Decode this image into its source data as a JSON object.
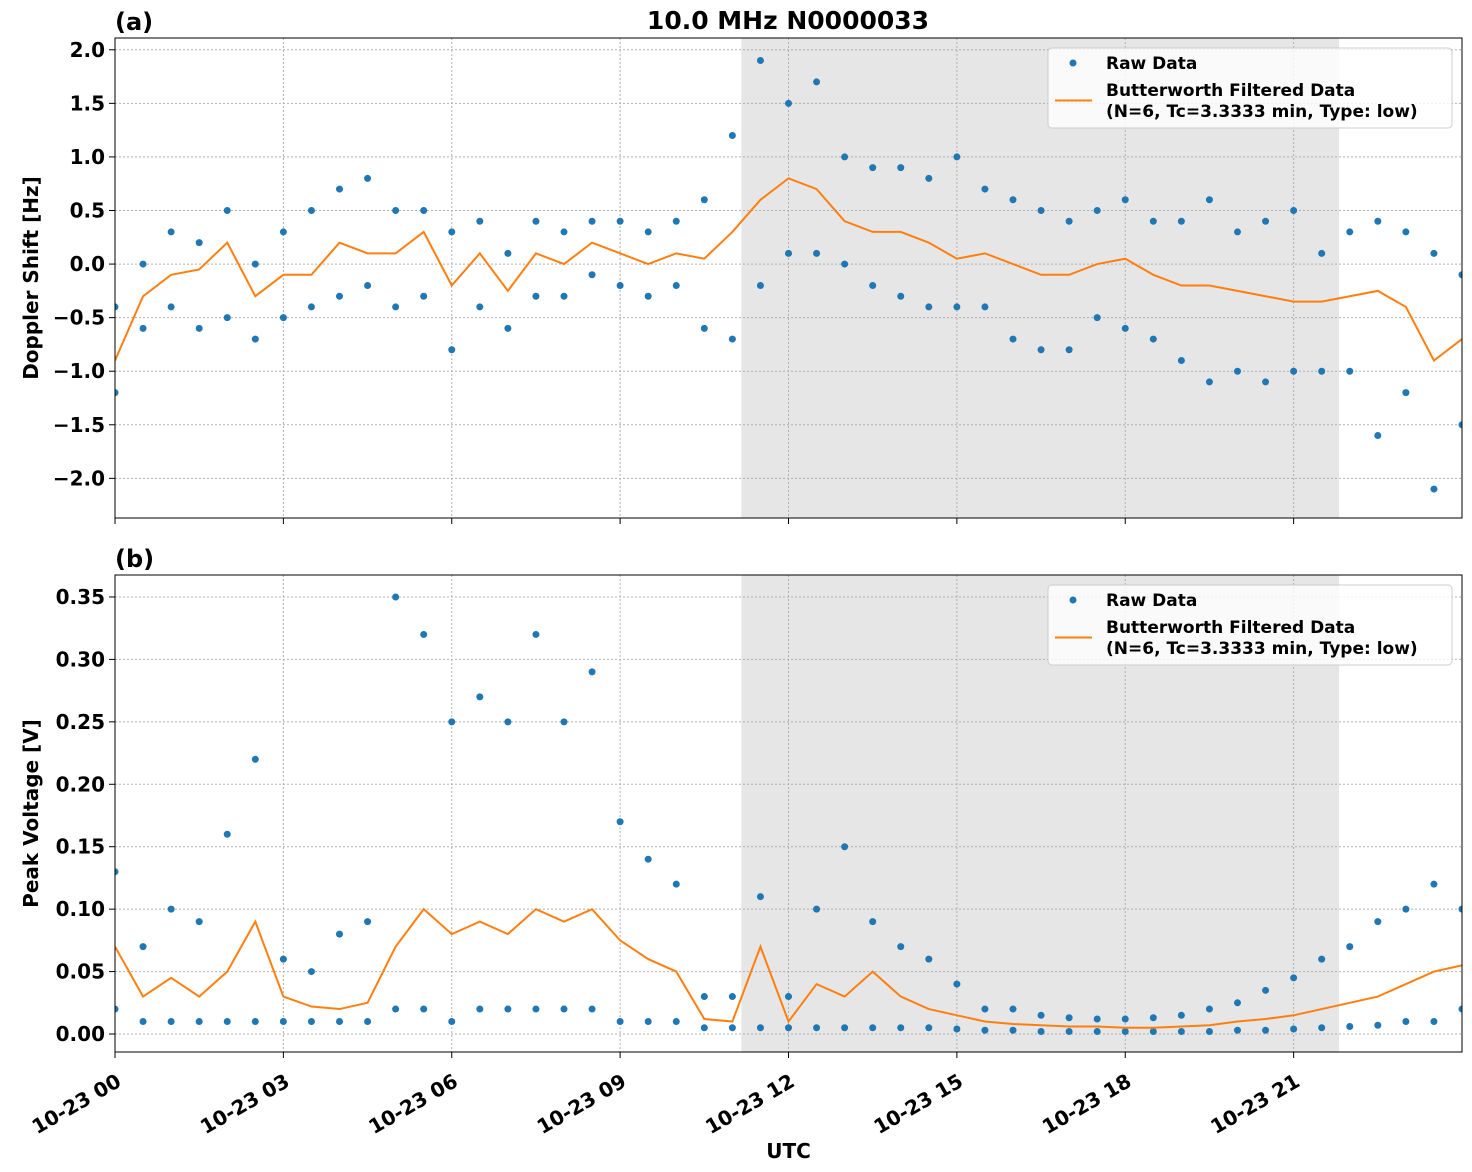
{
  "chart_data": [
    {
      "type": "scatter",
      "panel_label": "(a)",
      "title": "10.0 MHz N0000033",
      "ylabel": "Doppler Shift [Hz]",
      "xlim": [
        0,
        24
      ],
      "xticks": [
        0,
        3,
        6,
        9,
        12,
        15,
        18,
        21
      ],
      "ylim": [
        -2.37,
        2.11
      ],
      "yticks": [
        {
          "value": -2.0,
          "label": "−2.0"
        },
        {
          "value": -1.5,
          "label": "−1.5"
        },
        {
          "value": -1.0,
          "label": "−1.0"
        },
        {
          "value": -0.5,
          "label": "−0.5"
        },
        {
          "value": 0.0,
          "label": "0.0"
        },
        0.5,
        {
          "value": 1.0,
          "label": "1.0"
        },
        1.5,
        {
          "value": 2.0,
          "label": "2.0"
        }
      ],
      "grid": true,
      "legend": "upper right",
      "shaded_span": [
        11.16,
        21.81
      ],
      "shade_color": "#e6e6e6",
      "series": [
        {
          "name": "Raw Data",
          "style": "points",
          "color": "#1f77b4",
          "x": [
            0,
            0,
            0.5,
            0.5,
            1,
            1,
            1.5,
            1.5,
            2,
            2,
            2.5,
            2.5,
            3,
            3,
            3.5,
            3.5,
            4,
            4,
            4.5,
            4.5,
            5,
            5,
            5.5,
            5.5,
            6,
            6,
            6.5,
            6.5,
            7,
            7,
            7.5,
            7.5,
            8,
            8,
            8.5,
            8.5,
            9,
            9,
            9.5,
            9.5,
            10,
            10,
            10.5,
            10.5,
            11,
            11,
            11.5,
            11.5,
            12,
            12,
            12.5,
            12.5,
            13,
            13,
            13.5,
            13.5,
            14,
            14,
            14.5,
            14.5,
            15,
            15,
            15.5,
            15.5,
            16,
            16,
            16.5,
            16.5,
            17,
            17,
            17.5,
            17.5,
            18,
            18,
            18.5,
            18.5,
            19,
            19,
            19.5,
            19.5,
            20,
            20,
            20.5,
            20.5,
            21,
            21,
            21.5,
            21.5,
            22,
            22,
            22.5,
            22.5,
            23,
            23,
            23.5,
            23.5,
            24,
            24
          ],
          "values": [
            -1.2,
            -0.4,
            -0.6,
            0.0,
            -0.4,
            0.3,
            -0.6,
            0.2,
            -0.5,
            0.5,
            -0.7,
            0.0,
            -0.5,
            0.3,
            -0.4,
            0.5,
            -0.3,
            0.7,
            -0.2,
            0.8,
            -0.4,
            0.5,
            -0.3,
            0.5,
            -0.8,
            0.3,
            -0.4,
            0.4,
            -0.6,
            0.1,
            -0.3,
            0.4,
            -0.3,
            0.3,
            -0.1,
            0.4,
            -0.2,
            0.4,
            -0.3,
            0.3,
            -0.2,
            0.4,
            -0.6,
            0.6,
            -0.7,
            1.2,
            -0.2,
            1.9,
            0.1,
            1.5,
            0.1,
            1.7,
            0.0,
            1.0,
            -0.2,
            0.9,
            -0.3,
            0.9,
            -0.4,
            0.8,
            -0.4,
            1.0,
            -0.4,
            0.7,
            -0.7,
            0.6,
            -0.8,
            0.5,
            -0.8,
            0.4,
            -0.5,
            0.5,
            -0.6,
            0.6,
            -0.7,
            0.4,
            -0.9,
            0.4,
            -1.1,
            0.6,
            -1.0,
            0.3,
            -1.1,
            0.4,
            -1.0,
            0.5,
            -1.0,
            0.1,
            -1.0,
            0.3,
            -1.6,
            0.4,
            -1.2,
            0.3,
            -2.1,
            0.1,
            -1.5,
            -0.1
          ]
        },
        {
          "name": "Butterworth Filtered Data\n(N=6, Tc=3.3333 min, Type: low)",
          "style": "line",
          "color": "#ff7f0e",
          "x": [
            0,
            0.5,
            1,
            1.5,
            2,
            2.5,
            3,
            3.5,
            4,
            4.5,
            5,
            5.5,
            6,
            6.5,
            7,
            7.5,
            8,
            8.5,
            9,
            9.5,
            10,
            10.5,
            11,
            11.5,
            12,
            12.5,
            13,
            13.5,
            14,
            14.5,
            15,
            15.5,
            16,
            16.5,
            17,
            17.5,
            18,
            18.5,
            19,
            19.5,
            20,
            20.5,
            21,
            21.5,
            22,
            22.5,
            23,
            23.5,
            24
          ],
          "values": [
            -0.9,
            -0.3,
            -0.1,
            -0.05,
            0.2,
            -0.3,
            -0.1,
            -0.1,
            0.2,
            0.1,
            0.1,
            0.3,
            -0.2,
            0.1,
            -0.25,
            0.1,
            0.0,
            0.2,
            0.1,
            0.0,
            0.1,
            0.05,
            0.3,
            0.6,
            0.8,
            0.7,
            0.4,
            0.3,
            0.3,
            0.2,
            0.05,
            0.1,
            0.0,
            -0.1,
            -0.1,
            0.0,
            0.05,
            -0.1,
            -0.2,
            -0.2,
            -0.25,
            -0.3,
            -0.35,
            -0.35,
            -0.3,
            -0.25,
            -0.4,
            -0.9,
            -0.7
          ]
        }
      ]
    },
    {
      "type": "scatter",
      "panel_label": "(b)",
      "ylabel": "Peak Voltage [V]",
      "xlabel": "UTC",
      "xlim": [
        0,
        24
      ],
      "xticks": [
        {
          "value": 0,
          "label": "10-23 00"
        },
        {
          "value": 3,
          "label": "10-23 03"
        },
        {
          "value": 6,
          "label": "10-23 06"
        },
        {
          "value": 9,
          "label": "10-23 09"
        },
        {
          "value": 12,
          "label": "10-23 12"
        },
        {
          "value": 15,
          "label": "10-23 15"
        },
        {
          "value": 18,
          "label": "10-23 18"
        },
        {
          "value": 21,
          "label": "10-23 21"
        }
      ],
      "ylim": [
        -0.0144,
        0.3676
      ],
      "yticks": [
        {
          "value": 0.0,
          "label": "0.00"
        },
        0.05,
        {
          "value": 0.1,
          "label": "0.10"
        },
        0.15,
        {
          "value": 0.2,
          "label": "0.20"
        },
        0.25,
        {
          "value": 0.3,
          "label": "0.30"
        },
        0.35
      ],
      "grid": true,
      "legend": "upper right",
      "shaded_span": [
        11.16,
        21.81
      ],
      "shade_color": "#e6e6e6",
      "series": [
        {
          "name": "Raw Data",
          "style": "points",
          "color": "#1f77b4",
          "x": [
            0,
            0,
            0.5,
            0.5,
            1,
            1,
            1.5,
            1.5,
            2,
            2,
            2.5,
            2.5,
            3,
            3,
            3.5,
            3.5,
            4,
            4,
            4.5,
            4.5,
            5,
            5,
            5.5,
            5.5,
            6,
            6,
            6.5,
            6.5,
            7,
            7,
            7.5,
            7.5,
            8,
            8,
            8.5,
            8.5,
            9,
            9,
            9.5,
            9.5,
            10,
            10,
            10.5,
            10.5,
            11,
            11,
            11.5,
            11.5,
            12,
            12,
            12.5,
            12.5,
            13,
            13,
            13.5,
            13.5,
            14,
            14,
            14.5,
            14.5,
            15,
            15,
            15.5,
            15.5,
            16,
            16,
            16.5,
            16.5,
            17,
            17,
            17.5,
            17.5,
            18,
            18,
            18.5,
            18.5,
            19,
            19,
            19.5,
            19.5,
            20,
            20,
            20.5,
            20.5,
            21,
            21,
            21.5,
            21.5,
            22,
            22,
            22.5,
            22.5,
            23,
            23,
            23.5,
            23.5,
            24,
            24
          ],
          "values": [
            0.02,
            0.13,
            0.01,
            0.07,
            0.01,
            0.1,
            0.01,
            0.09,
            0.01,
            0.16,
            0.01,
            0.22,
            0.01,
            0.06,
            0.01,
            0.05,
            0.01,
            0.08,
            0.01,
            0.09,
            0.02,
            0.35,
            0.02,
            0.32,
            0.01,
            0.25,
            0.02,
            0.27,
            0.02,
            0.25,
            0.02,
            0.32,
            0.02,
            0.25,
            0.02,
            0.29,
            0.01,
            0.17,
            0.01,
            0.14,
            0.01,
            0.12,
            0.005,
            0.03,
            0.005,
            0.03,
            0.005,
            0.11,
            0.005,
            0.03,
            0.005,
            0.1,
            0.005,
            0.15,
            0.005,
            0.09,
            0.005,
            0.07,
            0.005,
            0.06,
            0.004,
            0.04,
            0.003,
            0.02,
            0.003,
            0.02,
            0.002,
            0.015,
            0.002,
            0.013,
            0.002,
            0.012,
            0.002,
            0.012,
            0.002,
            0.013,
            0.002,
            0.015,
            0.002,
            0.02,
            0.003,
            0.025,
            0.003,
            0.035,
            0.004,
            0.045,
            0.005,
            0.06,
            0.006,
            0.07,
            0.007,
            0.09,
            0.01,
            0.1,
            0.01,
            0.12,
            0.02,
            0.1
          ]
        },
        {
          "name": "Butterworth Filtered Data\n(N=6, Tc=3.3333 min, Type: low)",
          "style": "line",
          "color": "#ff7f0e",
          "x": [
            0,
            0.5,
            1,
            1.5,
            2,
            2.5,
            3,
            3.5,
            4,
            4.5,
            5,
            5.5,
            6,
            6.5,
            7,
            7.5,
            8,
            8.5,
            9,
            9.5,
            10,
            10.5,
            11,
            11.5,
            12,
            12.5,
            13,
            13.5,
            14,
            14.5,
            15,
            15.5,
            16,
            16.5,
            17,
            17.5,
            18,
            18.5,
            19,
            19.5,
            20,
            20.5,
            21,
            21.5,
            22,
            22.5,
            23,
            23.5,
            24
          ],
          "values": [
            0.07,
            0.03,
            0.045,
            0.03,
            0.05,
            0.09,
            0.03,
            0.022,
            0.02,
            0.025,
            0.07,
            0.1,
            0.08,
            0.09,
            0.08,
            0.1,
            0.09,
            0.1,
            0.075,
            0.06,
            0.05,
            0.012,
            0.01,
            0.07,
            0.01,
            0.04,
            0.03,
            0.05,
            0.03,
            0.02,
            0.015,
            0.01,
            0.008,
            0.007,
            0.006,
            0.006,
            0.005,
            0.005,
            0.006,
            0.007,
            0.01,
            0.012,
            0.015,
            0.02,
            0.025,
            0.03,
            0.04,
            0.05,
            0.055
          ]
        }
      ]
    }
  ]
}
